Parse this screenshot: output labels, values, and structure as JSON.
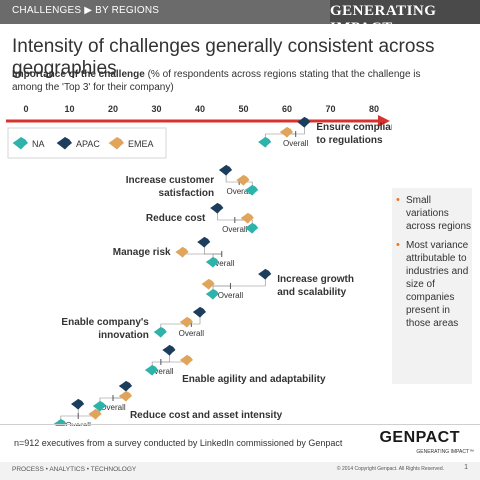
{
  "header": {
    "breadcrumb": "CHALLENGES ▶ BY REGIONS",
    "brand": "GENERATING IMPACT"
  },
  "title": "Intensity of challenges generally consistent across geographies",
  "subtitle": {
    "bold": "Importance of the challenge",
    "rest": " (% of respondents across regions stating that the challenge is among the 'Top 3' for their company)"
  },
  "chart_data": {
    "type": "scatter",
    "x_ticks": [
      0,
      10,
      20,
      30,
      40,
      50,
      60,
      70,
      80
    ],
    "xlim": [
      0,
      80
    ],
    "legend": [
      {
        "name": "NA",
        "color": "#2db3a9"
      },
      {
        "name": "APAC",
        "color": "#1c3d5c"
      },
      {
        "name": "EMEA",
        "color": "#e0a45a"
      }
    ],
    "overall_label": "Overall",
    "series": [
      {
        "name": "Ensure compliance to regulations",
        "overall": 62,
        "NA": 55,
        "APAC": 64,
        "EMEA": 60
      },
      {
        "name": "Increase customer satisfaction",
        "overall": 49,
        "NA": 52,
        "APAC": 46,
        "EMEA": 50
      },
      {
        "name": "Reduce cost",
        "overall": 48,
        "NA": 52,
        "APAC": 44,
        "EMEA": 51
      },
      {
        "name": "Manage risk",
        "overall": 45,
        "NA": 43,
        "APAC": 41,
        "EMEA": 36
      },
      {
        "name": "Increase growth and scalability",
        "overall": 47,
        "NA": 43,
        "APAC": 55,
        "EMEA": 42
      },
      {
        "name": "Enable company's innovation",
        "overall": 38,
        "NA": 31,
        "APAC": 40,
        "EMEA": 37
      },
      {
        "name": "Enable agility and adaptability",
        "overall": 31,
        "NA": 29,
        "APAC": 33,
        "EMEA": 37
      },
      {
        "name": "Reduce cost and asset intensity",
        "overall": 20,
        "NA": 17,
        "APAC": 23,
        "EMEA": 23
      },
      {
        "name": "",
        "overall": 12,
        "NA": 8,
        "APAC": 12,
        "EMEA": 16
      }
    ]
  },
  "sidebar": {
    "points": [
      "Small variations across regions",
      "Most variance attributable to industries and size of companies present in those areas"
    ]
  },
  "footer": {
    "note": "n=912 executives from a survey conducted by LinkedIn commissioned by Genpact",
    "logo": "GENPACT",
    "logo_tagline": "GENERATING IMPACT™",
    "left": "PROCESS • ANALYTICS • TECHNOLOGY",
    "copyright": "© 2014 Copyright Genpact. All Rights Reserved.",
    "page": "1"
  },
  "colors": {
    "axis_arrow": "#d9322e",
    "na": "#2db3a9",
    "apac": "#1c3d5c",
    "emea": "#e0a45a"
  }
}
